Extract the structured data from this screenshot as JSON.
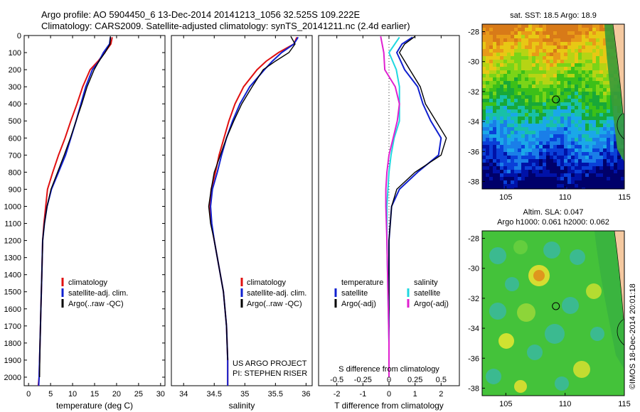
{
  "header": {
    "line1": "Argo profile: AO 5904450_6 13-Dec-2014 20141213_1056 32.525S 109.222E",
    "line2": "Climatology: CARS2009. Satellite-adjusted climatology: synTS_20141211.nc (2.4d earlier)"
  },
  "colors": {
    "climatology": "#e01010",
    "satellite": "#1020d0",
    "argo": "#000000",
    "satellite_salinity": "#20d8e0",
    "argo_salinity_diff": "#e020d0"
  },
  "chart_data": [
    {
      "type": "line",
      "name": "temperature-panel",
      "xlabel": "temperature (deg C)",
      "ylabel": "",
      "xlim": [
        -1,
        31
      ],
      "ylim": [
        2050,
        0
      ],
      "xticks": [
        0,
        5,
        10,
        15,
        20,
        25,
        30
      ],
      "yticks": [
        0,
        100,
        200,
        300,
        400,
        500,
        600,
        700,
        800,
        900,
        1000,
        1100,
        1200,
        1300,
        1400,
        1500,
        1600,
        1700,
        1800,
        1900,
        2000
      ],
      "legend": [
        "climatology",
        "satellite-adj. clim.",
        "Argo(..raw -QC)"
      ],
      "series": [
        {
          "name": "climatology",
          "color": "climatology",
          "x": [
            19.0,
            18.7,
            17.3,
            15.8,
            14.0,
            12.3,
            11.0,
            9.6,
            8.3,
            6.8,
            5.5,
            4.3,
            3.9,
            3.5,
            3.2,
            3.0,
            2.8,
            2.6,
            2.4,
            2.2
          ],
          "y": [
            10,
            50,
            100,
            150,
            200,
            300,
            400,
            500,
            600,
            700,
            800,
            900,
            1000,
            1100,
            1200,
            1400,
            1600,
            1800,
            2000,
            2050
          ]
        },
        {
          "name": "satellite-adj. clim.",
          "color": "satellite",
          "x": [
            18.6,
            18.4,
            17.0,
            16.0,
            14.5,
            13.0,
            11.9,
            10.8,
            9.6,
            8.4,
            6.8,
            5.2,
            4.2,
            3.6,
            3.2,
            3.0,
            2.8,
            2.6,
            2.4,
            2.3
          ],
          "y": [
            10,
            50,
            100,
            150,
            200,
            300,
            400,
            500,
            600,
            700,
            800,
            900,
            1000,
            1100,
            1200,
            1400,
            1600,
            1800,
            2000,
            2050
          ]
        },
        {
          "name": "Argo(..raw -QC)",
          "color": "argo",
          "x": [
            18.6,
            18.5,
            17.4,
            16.0,
            14.9,
            13.3,
            12.1,
            10.8,
            9.5,
            8.1,
            6.6,
            5.1,
            4.2,
            3.6,
            3.2,
            3.0,
            2.8,
            2.6,
            2.5
          ],
          "y": [
            5,
            50,
            100,
            150,
            200,
            300,
            400,
            500,
            600,
            700,
            800,
            900,
            1000,
            1100,
            1200,
            1400,
            1600,
            1800,
            2000
          ]
        }
      ]
    },
    {
      "type": "line",
      "name": "salinity-panel",
      "xlabel": "salinity",
      "ylabel": "",
      "xlim": [
        33.8,
        36.1
      ],
      "ylim": [
        2050,
        0
      ],
      "xticks": [
        34,
        34.5,
        35,
        35.5,
        36
      ],
      "xticklabels": [
        "34",
        "34.5",
        "35",
        "35.5",
        "36"
      ],
      "legend": [
        "climatology",
        "satellite-adj. clim.",
        "Argo(..raw -QC)"
      ],
      "series": [
        {
          "name": "climatology",
          "color": "climatology",
          "x": [
            35.85,
            35.8,
            35.55,
            35.35,
            35.2,
            34.98,
            34.84,
            34.74,
            34.66,
            34.58,
            34.52,
            34.45,
            34.43,
            34.45,
            34.5,
            34.55,
            34.6,
            34.65,
            34.7,
            34.72,
            34.72
          ],
          "y": [
            10,
            50,
            100,
            150,
            200,
            300,
            400,
            500,
            600,
            700,
            800,
            900,
            1000,
            1100,
            1200,
            1300,
            1400,
            1500,
            1700,
            1900,
            2050
          ]
        },
        {
          "name": "satellite-adj. clim.",
          "color": "satellite",
          "x": [
            35.87,
            35.8,
            35.6,
            35.45,
            35.32,
            35.08,
            34.92,
            34.8,
            34.7,
            34.62,
            34.55,
            34.47,
            34.44,
            34.46,
            34.5,
            34.55,
            34.6,
            34.65,
            34.7,
            34.72,
            34.72
          ],
          "y": [
            10,
            50,
            100,
            150,
            200,
            300,
            400,
            500,
            600,
            700,
            800,
            900,
            1000,
            1100,
            1200,
            1300,
            1400,
            1500,
            1700,
            1900,
            2050
          ]
        },
        {
          "name": "Argo(..raw -QC)",
          "color": "argo",
          "x": [
            35.75,
            35.82,
            35.72,
            35.5,
            35.3,
            35.12,
            34.95,
            34.82,
            34.7,
            34.6,
            34.5,
            34.45,
            34.41,
            34.44,
            34.5,
            34.55,
            34.6,
            34.65,
            34.7,
            34.72
          ],
          "y": [
            5,
            50,
            100,
            150,
            200,
            300,
            400,
            500,
            600,
            700,
            800,
            900,
            1000,
            1100,
            1200,
            1300,
            1400,
            1500,
            1700,
            1900
          ]
        }
      ]
    },
    {
      "type": "line",
      "name": "difference-panel",
      "xlabel": "T difference from climatology",
      "xlabel_top": "S difference from climatology",
      "ylabel": "",
      "xlim": [
        -2.7,
        2.7
      ],
      "ylim": [
        2050,
        0
      ],
      "xticks": [
        -2,
        -1,
        0,
        1,
        2
      ],
      "s_ticks": [
        -0.5,
        -0.25,
        0,
        0.25,
        0.5
      ],
      "s_ticklabels": [
        "-0.5",
        "-0.25",
        "0",
        "0.25",
        "0.5"
      ],
      "legend_temperature_title": "temperature",
      "legend_salinity_title": "salinity",
      "legend": [
        "satellite",
        "Argo(-adj)",
        "satellite",
        "Argo(-adj)"
      ],
      "series": [
        {
          "name": "satellite",
          "group": "temperature",
          "color": "satellite",
          "x": [
            0.9,
            0.5,
            0.3,
            0.6,
            1.1,
            1.3,
            1.6,
            2.0,
            1.9,
            1.1,
            0.4,
            0.1,
            0.0,
            0.0,
            0.0,
            0.0
          ],
          "y": [
            10,
            50,
            100,
            200,
            300,
            400,
            500,
            600,
            700,
            800,
            900,
            1000,
            1200,
            1500,
            1800,
            2000
          ]
        },
        {
          "name": "Argo(-adj)",
          "group": "temperature",
          "color": "argo",
          "x": [
            1.0,
            0.6,
            0.4,
            0.8,
            1.2,
            1.4,
            1.8,
            2.2,
            2.0,
            1.0,
            0.3,
            0.1,
            0.0,
            0.0,
            0.0,
            0.0
          ],
          "y": [
            5,
            50,
            100,
            200,
            300,
            400,
            500,
            600,
            700,
            800,
            900,
            1000,
            1200,
            1500,
            1800,
            2000
          ]
        },
        {
          "name": "satellite",
          "group": "salinity",
          "color": "satellite_salinity",
          "x": [
            0.1,
            0.0,
            0.07,
            0.1,
            0.1,
            0.1,
            0.05,
            0.02,
            0.0,
            -0.01,
            -0.02,
            -0.02,
            -0.01,
            0.0,
            0.0
          ],
          "y": [
            10,
            100,
            200,
            300,
            400,
            500,
            600,
            700,
            800,
            900,
            1000,
            1200,
            1500,
            1800,
            2000
          ]
        },
        {
          "name": "Argo(-adj)",
          "group": "salinity",
          "color": "argo_salinity_diff",
          "x": [
            -0.08,
            -0.05,
            -0.04,
            0.06,
            0.1,
            0.08,
            0.04,
            0.0,
            -0.02,
            -0.03,
            -0.03,
            -0.02,
            -0.01,
            0.0,
            0.0
          ],
          "y": [
            5,
            100,
            200,
            300,
            400,
            500,
            600,
            700,
            800,
            900,
            1000,
            1200,
            1500,
            1800,
            2000
          ]
        }
      ]
    },
    {
      "type": "heatmap",
      "name": "sst-map",
      "title": "sat. SST: 18.5 Argo: 18.9",
      "xlim": [
        103,
        115
      ],
      "ylim": [
        -38.5,
        -27.5
      ],
      "xticks": [
        105,
        110,
        115
      ],
      "yticks": [
        -28,
        -30,
        -32,
        -34,
        -36,
        -38
      ],
      "float_position": {
        "lon": 109.222,
        "lat": -32.525
      }
    },
    {
      "type": "heatmap",
      "name": "sla-map",
      "title_line1": "Altim. SLA: 0.047",
      "title_line2": "Argo h1000: 0.061 h2000: 0.062",
      "xlim": [
        103,
        115
      ],
      "ylim": [
        -38.5,
        -27.5
      ],
      "xticks": [
        105,
        110,
        115
      ],
      "yticks": [
        -28,
        -30,
        -32,
        -34,
        -36,
        -38
      ],
      "float_position": {
        "lon": 109.222,
        "lat": -32.525
      }
    }
  ],
  "annotations": {
    "project_line1": "US ARGO PROJECT",
    "project_line2": "PI: STEPHEN RISER",
    "watermark": "©IMOS 18-Dec-2014 20:01:18"
  }
}
